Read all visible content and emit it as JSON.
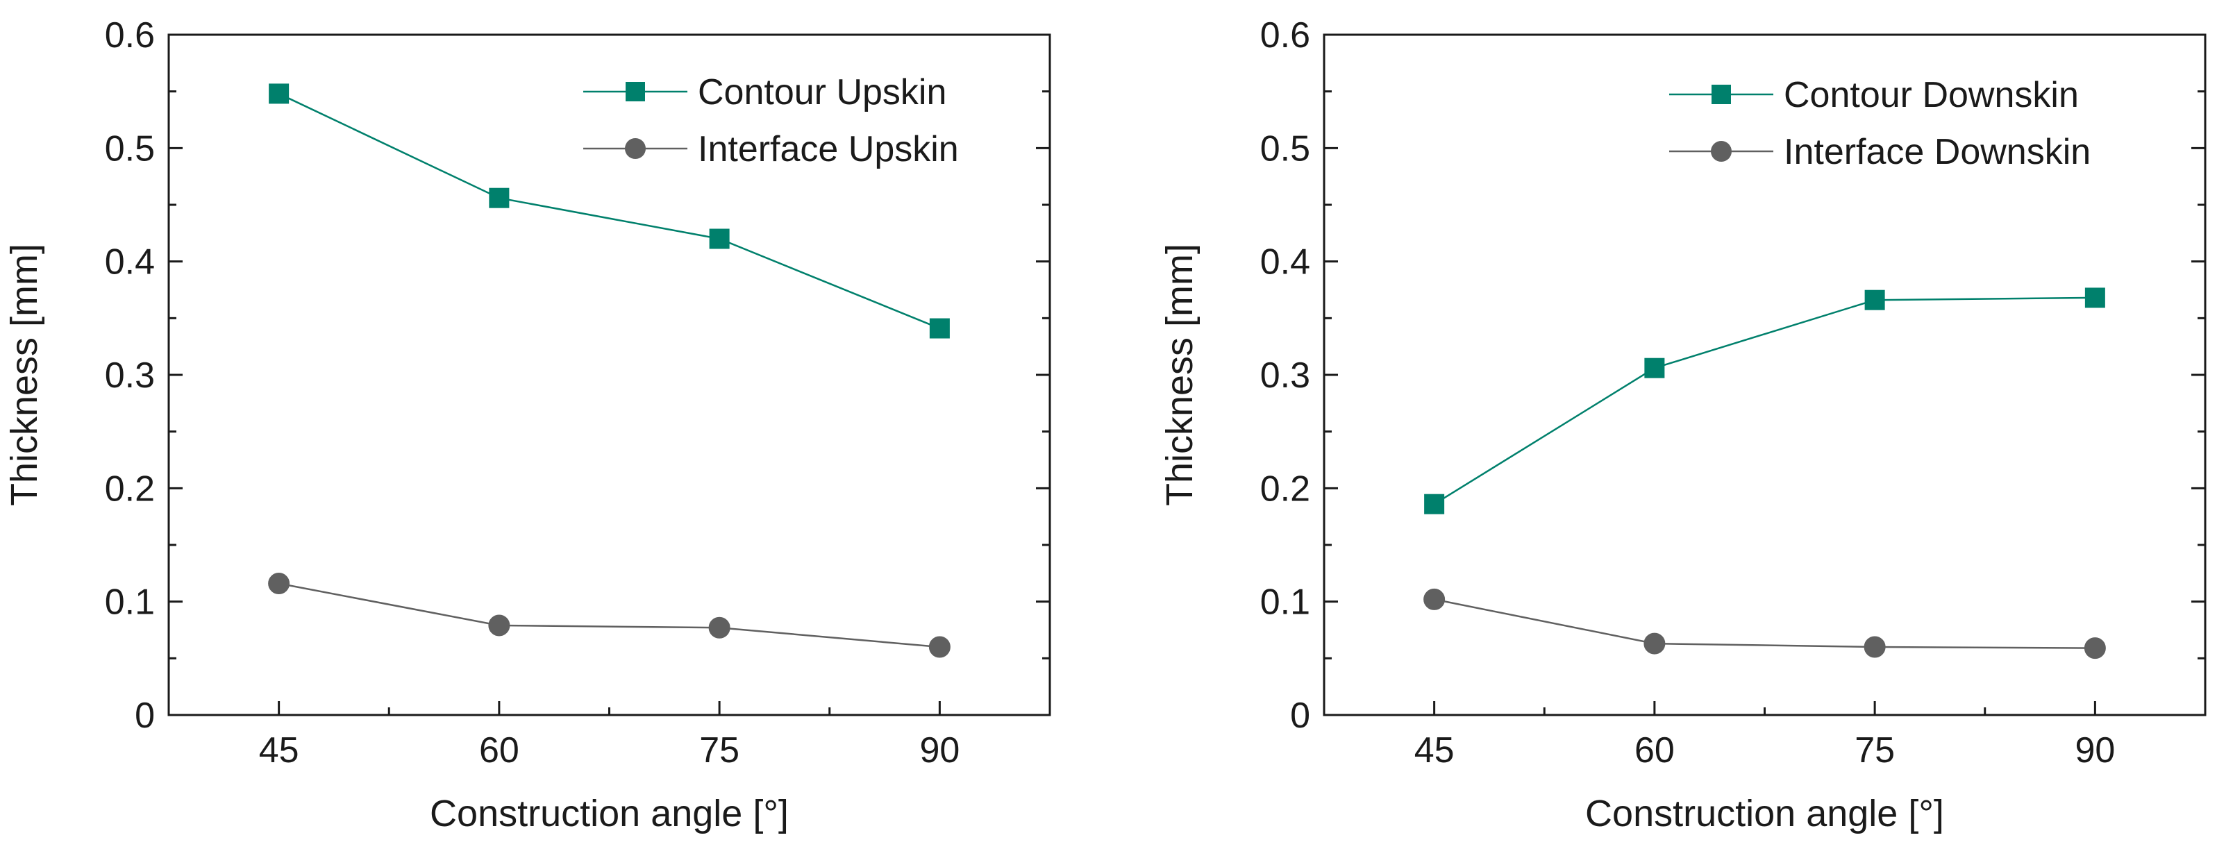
{
  "colors": {
    "contour": "#00806c",
    "interface": "#606060",
    "axis": "#1a1a1a",
    "background": "#ffffff"
  },
  "chart_data": [
    {
      "type": "line",
      "title": "",
      "xlabel": "Construction angle [°]",
      "ylabel": "Thickness [mm]",
      "categories": [
        "45",
        "60",
        "75",
        "90"
      ],
      "x": [
        45,
        60,
        75,
        90
      ],
      "xlim": [
        37.5,
        97.5
      ],
      "ylim": [
        0,
        0.6
      ],
      "yticks": [
        "0",
        "0.1",
        "0.2",
        "0.3",
        "0.4",
        "0.5",
        "0.6"
      ],
      "grid": false,
      "legend_position": "top-right",
      "series": [
        {
          "name": "Contour Upskin",
          "marker": "square",
          "color": "#00806c",
          "values": [
            0.548,
            0.456,
            0.42,
            0.341
          ]
        },
        {
          "name": "Interface Upskin",
          "marker": "circle",
          "color": "#606060",
          "values": [
            0.116,
            0.079,
            0.077,
            0.06
          ]
        }
      ]
    },
    {
      "type": "line",
      "title": "",
      "xlabel": "Construction angle [°]",
      "ylabel": "Thickness [mm]",
      "categories": [
        "45",
        "60",
        "75",
        "90"
      ],
      "x": [
        45,
        60,
        75,
        90
      ],
      "xlim": [
        37.5,
        97.5
      ],
      "ylim": [
        0,
        0.6
      ],
      "yticks": [
        "0",
        "0.1",
        "0.2",
        "0.3",
        "0.4",
        "0.5",
        "0.6"
      ],
      "grid": false,
      "legend_position": "top-right",
      "series": [
        {
          "name": "Contour Downskin",
          "marker": "square",
          "color": "#00806c",
          "values": [
            0.186,
            0.306,
            0.366,
            0.368
          ]
        },
        {
          "name": "Interface Downskin",
          "marker": "circle",
          "color": "#606060",
          "values": [
            0.102,
            0.063,
            0.06,
            0.059
          ]
        }
      ]
    }
  ]
}
